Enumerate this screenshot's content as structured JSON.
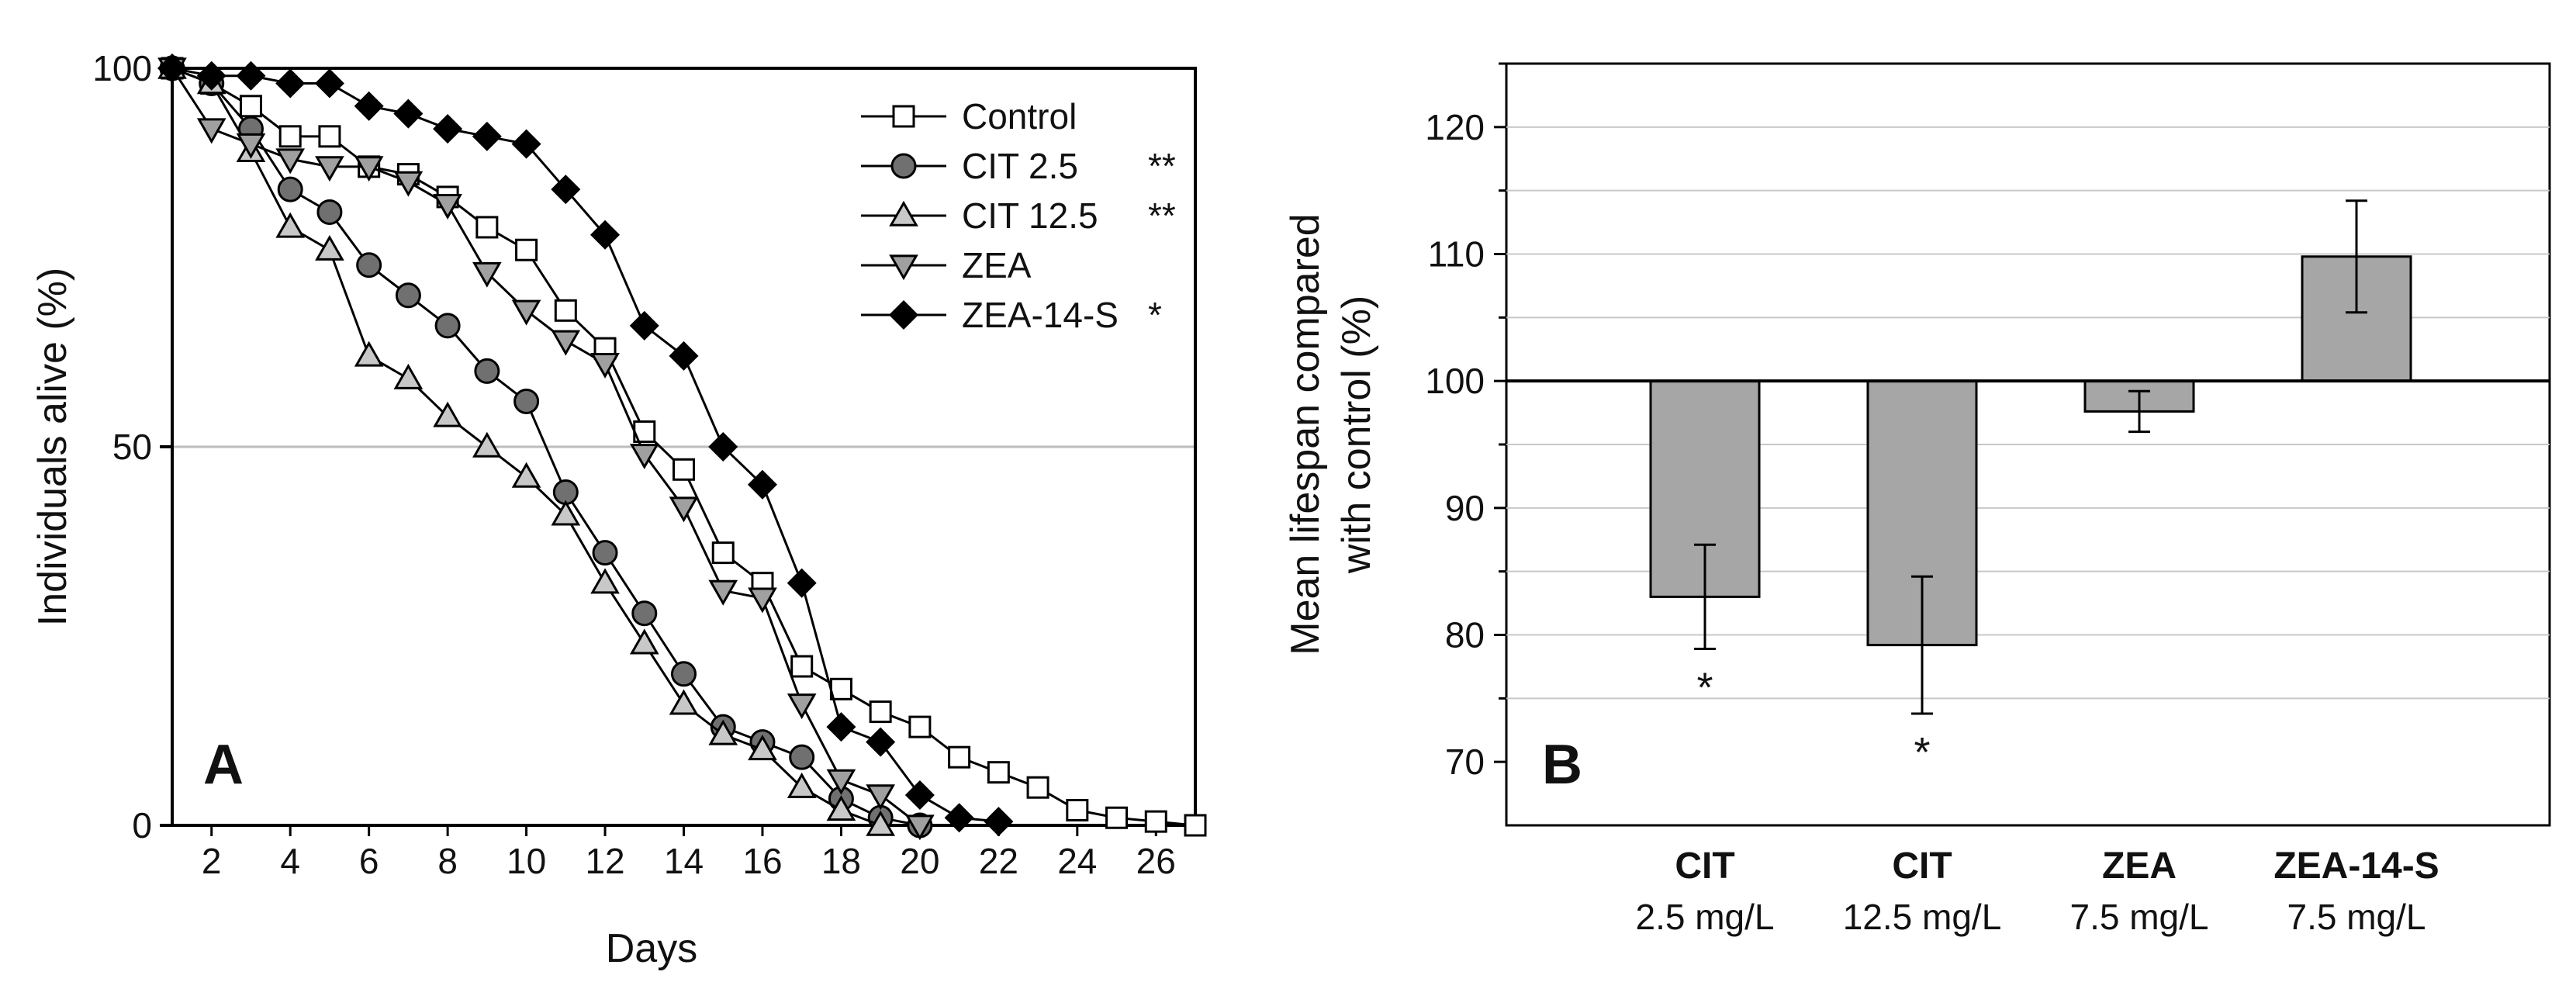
{
  "chart_data": [
    {
      "type": "line",
      "panel_label": "A",
      "xlabel": "Days",
      "ylabel": "Individuals alive (%)",
      "xlim": [
        1,
        27
      ],
      "ylim": [
        0,
        100
      ],
      "xticks": [
        2,
        4,
        6,
        8,
        10,
        12,
        14,
        16,
        18,
        20,
        22,
        24,
        26
      ],
      "yticks": [
        0,
        50,
        100
      ],
      "gridlines_y": [
        50
      ],
      "legend_position": "top-right",
      "series": [
        {
          "name": "Control",
          "marker": "square",
          "fill": "#ffffff",
          "significance": "",
          "x": [
            1,
            2,
            3,
            4,
            5,
            6,
            7,
            8,
            9,
            10,
            11,
            12,
            13,
            14,
            15,
            16,
            17,
            18,
            19,
            20,
            21,
            22,
            23,
            24,
            25,
            26,
            27
          ],
          "y": [
            100,
            98,
            95,
            91,
            91,
            87,
            86,
            83,
            79,
            76,
            68,
            63,
            52,
            47,
            36,
            32,
            21,
            18,
            15,
            13,
            9,
            7,
            5,
            2,
            1,
            0.5,
            0
          ]
        },
        {
          "name": "CIT 2.5",
          "marker": "circle",
          "fill": "#707070",
          "significance": "**",
          "x": [
            1,
            2,
            3,
            4,
            5,
            6,
            7,
            8,
            9,
            10,
            11,
            12,
            13,
            14,
            15,
            16,
            17,
            18,
            19,
            20
          ],
          "y": [
            100,
            98,
            92,
            84,
            81,
            74,
            70,
            66,
            60,
            56,
            44,
            36,
            28,
            20,
            13,
            11,
            9,
            3.5,
            1,
            0
          ]
        },
        {
          "name": "CIT 12.5",
          "marker": "triangle-up",
          "fill": "#c8c8c8",
          "significance": "**",
          "x": [
            1,
            2,
            3,
            4,
            5,
            6,
            7,
            8,
            9,
            10,
            11,
            12,
            13,
            14,
            15,
            16,
            17,
            18,
            19
          ],
          "y": [
            100,
            98,
            89,
            79,
            76,
            62,
            59,
            54,
            50,
            46,
            41,
            32,
            24,
            16,
            12,
            10,
            5,
            2,
            0
          ]
        },
        {
          "name": "ZEA",
          "marker": "triangle-down",
          "fill": "#a0a0a0",
          "significance": "",
          "x": [
            1,
            2,
            3,
            4,
            5,
            6,
            7,
            8,
            9,
            10,
            11,
            12,
            13,
            14,
            15,
            16,
            17,
            18,
            19,
            20
          ],
          "y": [
            100,
            92,
            90,
            88,
            87,
            87,
            85,
            82,
            73,
            68,
            64,
            61,
            49,
            42,
            31,
            30,
            16,
            6,
            4,
            0
          ]
        },
        {
          "name": "ZEA-14-S",
          "marker": "diamond",
          "fill": "#000000",
          "significance": "*",
          "x": [
            1,
            2,
            3,
            4,
            5,
            6,
            7,
            8,
            9,
            10,
            11,
            12,
            13,
            14,
            15,
            16,
            17,
            18,
            19,
            20,
            21,
            22
          ],
          "y": [
            100,
            99,
            99,
            98,
            98,
            95,
            94,
            92,
            91,
            90,
            84,
            78,
            66,
            62,
            50,
            45,
            32,
            13,
            11,
            4,
            1,
            0.5
          ]
        }
      ]
    },
    {
      "type": "bar",
      "panel_label": "B",
      "ylabel_lines": [
        "Mean lifespan compared",
        "with control (%)"
      ],
      "ylim": [
        65,
        125
      ],
      "baseline": 100,
      "yticks": [
        70,
        80,
        90,
        100,
        110,
        120
      ],
      "gridlines_y": [
        75,
        80,
        85,
        90,
        95,
        105,
        110,
        115,
        120
      ],
      "categories": [
        {
          "name": "CIT",
          "dose": "2.5 mg/L"
        },
        {
          "name": "CIT",
          "dose": "12.5 mg/L"
        },
        {
          "name": "ZEA",
          "dose": "7.5 mg/L"
        },
        {
          "name": "ZEA-14-S",
          "dose": "7.5 mg/L"
        }
      ],
      "values": [
        83,
        79.2,
        97.6,
        109.8
      ],
      "errors": [
        4.1,
        5.4,
        1.6,
        4.4
      ],
      "significance": [
        "*",
        "*",
        "",
        ""
      ],
      "bar_color": "#a6a6a6"
    }
  ]
}
